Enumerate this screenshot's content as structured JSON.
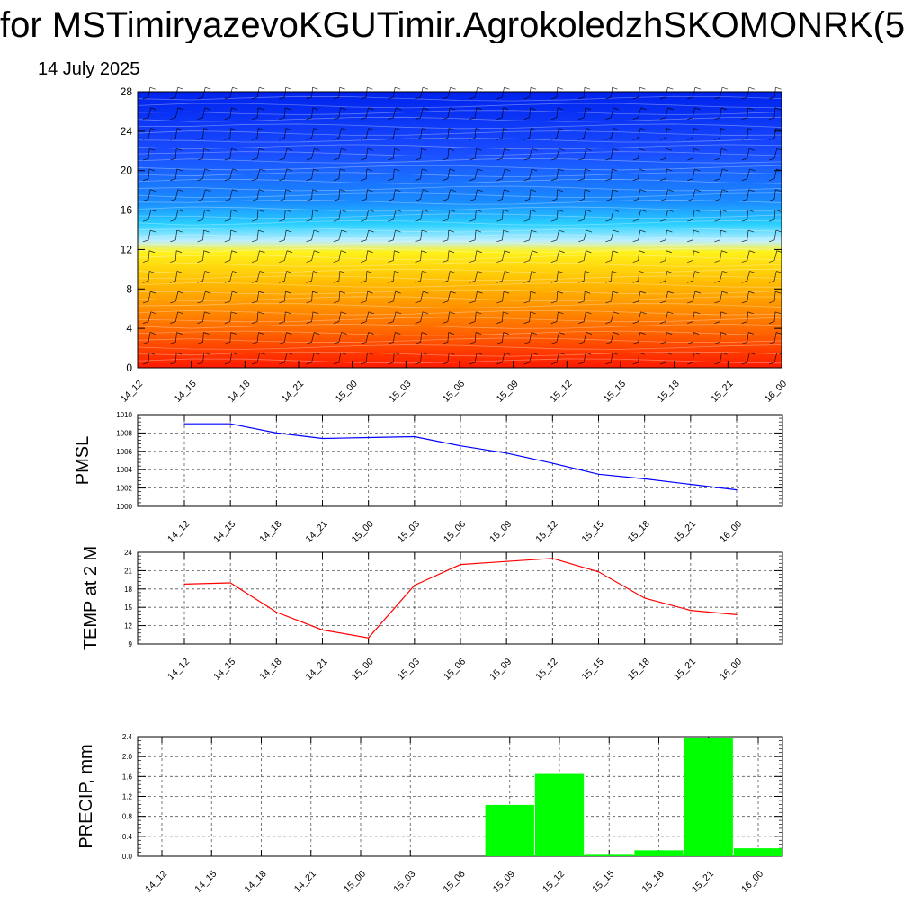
{
  "header": {
    "title": "for MSTimiryazevoKGUTimir.AgrokoledzhSKOMONRK(5",
    "date": "14 July 2025"
  },
  "chart_data": [
    {
      "type": "heatmap",
      "title": "",
      "xlabel": "",
      "ylabel": "",
      "x_labels": [
        "14_12",
        "14_15",
        "14_18",
        "14_21",
        "15_00",
        "15_03",
        "15_06",
        "15_09",
        "15_12",
        "15_15",
        "15_18",
        "15_21",
        "16_00"
      ],
      "y_ticks": [
        "0",
        "4",
        "8",
        "12",
        "16",
        "20",
        "24",
        "28"
      ],
      "ylim": [
        0,
        28
      ],
      "color_scale": [
        "#ff1a00",
        "#ff6a00",
        "#ffb800",
        "#fff21a",
        "#bfefff",
        "#2ad0ff",
        "#1a8cff",
        "#1a4dff",
        "#0022ee"
      ],
      "overlay": "wind barbs",
      "grid": false
    },
    {
      "type": "line",
      "ylabel": "PMSL",
      "categories": [
        "14_12",
        "14_15",
        "14_18",
        "14_21",
        "15_00",
        "15_03",
        "15_06",
        "15_09",
        "15_12",
        "15_15",
        "15_18",
        "15_21",
        "16_00"
      ],
      "values": [
        1009.0,
        1009.0,
        1008.0,
        1007.4,
        1007.5,
        1007.6,
        1006.6,
        1005.8,
        1004.7,
        1003.5,
        1003.0,
        1002.4,
        1001.8
      ],
      "ylim": [
        1000,
        1010
      ],
      "y_ticks": [
        "1000",
        "1002",
        "1004",
        "1006",
        "1008",
        "1010"
      ],
      "color": "#0000ff",
      "grid": true
    },
    {
      "type": "line",
      "ylabel": "TEMP at 2 M",
      "categories": [
        "14_12",
        "14_15",
        "14_18",
        "14_21",
        "15_00",
        "15_03",
        "15_06",
        "15_09",
        "15_12",
        "15_15",
        "15_18",
        "15_21",
        "16_00"
      ],
      "values": [
        18.8,
        19.0,
        14.2,
        11.3,
        10.0,
        18.6,
        22.0,
        22.5,
        23.0,
        20.8,
        16.5,
        14.5,
        13.8
      ],
      "ylim": [
        9,
        24
      ],
      "y_ticks": [
        "9",
        "12",
        "15",
        "18",
        "21",
        "24"
      ],
      "color": "#ff0000",
      "grid": true
    },
    {
      "type": "bar",
      "ylabel": "PRECIP, mm",
      "categories": [
        "14_12",
        "14_15",
        "14_18",
        "14_21",
        "15_00",
        "15_03",
        "15_06",
        "15_09",
        "15_12",
        "15_15",
        "15_18",
        "15_21",
        "16_00"
      ],
      "values": [
        0,
        0,
        0,
        0,
        0,
        0,
        0,
        1.03,
        1.65,
        0.03,
        0.12,
        2.38,
        0.16
      ],
      "ylim": [
        0,
        2.4
      ],
      "y_ticks": [
        "0.0",
        "0.4",
        "0.8",
        "1.2",
        "1.6",
        "2.0",
        "2.4"
      ],
      "color": "#00ff00",
      "grid": true
    }
  ]
}
